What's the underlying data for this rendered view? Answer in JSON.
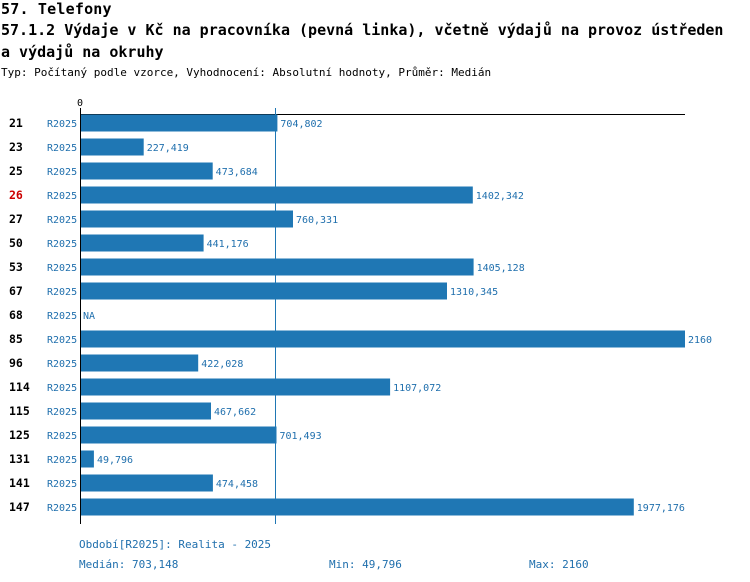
{
  "header": {
    "section": "57. Telefony",
    "title_line1": "57.1.2 Výdaje v Kč na pracovníka (pevná linka), včetně výdajů na provoz ústředen",
    "title_line2": "a výdajů na okruhy",
    "subtitle": "Typ: Počítaný podle vzorce, Vyhodnocení: Absolutní hodnoty, Průměr: Medián"
  },
  "colors": {
    "bar": "#1f77b4",
    "text": "#1f6fad",
    "highlight": "#cc0000",
    "axis": "#000000"
  },
  "chart_data": {
    "type": "bar",
    "orientation": "horizontal",
    "axis_zero_label": "0",
    "xlim": [
      0,
      2160
    ],
    "reference_line": {
      "name": "Medián",
      "value": 703148
    },
    "series_label": "R2025",
    "highlight_category": "26",
    "rows": [
      {
        "category": "21",
        "value": 704802,
        "label": "704,802"
      },
      {
        "category": "23",
        "value": 227419,
        "label": "227,419"
      },
      {
        "category": "25",
        "value": 473684,
        "label": "473,684"
      },
      {
        "category": "26",
        "value": 1402342,
        "label": "1402,342"
      },
      {
        "category": "27",
        "value": 760331,
        "label": "760,331"
      },
      {
        "category": "50",
        "value": 441176,
        "label": "441,176"
      },
      {
        "category": "53",
        "value": 1405128,
        "label": "1405,128"
      },
      {
        "category": "67",
        "value": 1310345,
        "label": "1310,345"
      },
      {
        "category": "68",
        "value": null,
        "label": "NA"
      },
      {
        "category": "85",
        "value": 2160,
        "label": "2160"
      },
      {
        "category": "96",
        "value": 422028,
        "label": "422,028"
      },
      {
        "category": "114",
        "value": 1107072,
        "label": "1107,072"
      },
      {
        "category": "115",
        "value": 467662,
        "label": "467,662"
      },
      {
        "category": "125",
        "value": 701493,
        "label": "701,493"
      },
      {
        "category": "131",
        "value": 49796,
        "label": "49,796"
      },
      {
        "category": "141",
        "value": 474458,
        "label": "474,458"
      },
      {
        "category": "147",
        "value": 1977176,
        "label": "1977,176"
      }
    ]
  },
  "footer": {
    "period": "Období[R2025]: Realita - 2025",
    "median": "Medián: 703,148",
    "min": "Min: 49,796",
    "max": "Max: 2160"
  }
}
